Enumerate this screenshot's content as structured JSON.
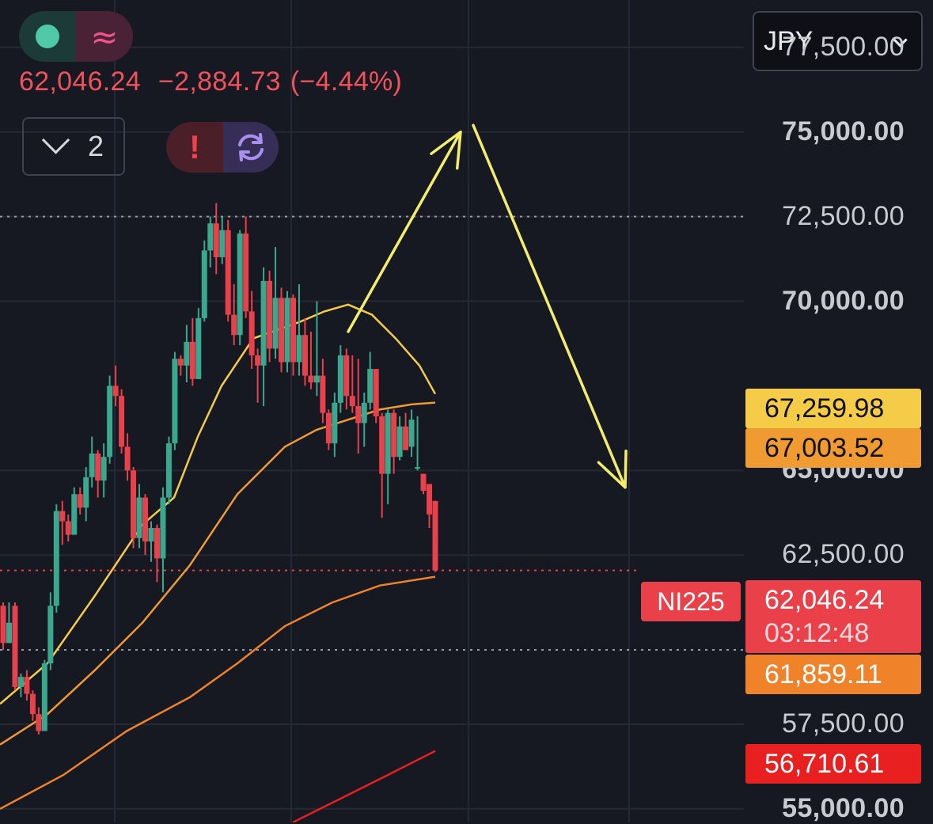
{
  "header": {
    "last_price": "62,046.24",
    "change": "−2,884.73",
    "change_pct": "(−4.44%)",
    "collapse_count": "2",
    "status_alert": "!",
    "icons": [
      "green-dot-icon",
      "wave-icon",
      "chevron-down-icon",
      "alert-icon",
      "refresh-icon"
    ]
  },
  "currency": {
    "selected": "JPY"
  },
  "symbol": "NI225",
  "tags": {
    "ma1": "67,259.98",
    "ma2": "67,003.52",
    "last": "62,046.24",
    "countdown": "03:12:48",
    "ma3": "61,859.11",
    "ma4": "56,710.61"
  },
  "colors": {
    "background": "#161822",
    "up": "#3aa88f",
    "down": "#e9414c",
    "ma1": "#f5cc47",
    "ma2": "#f09a32",
    "ma3": "#f0822a",
    "ma4": "#e8201f",
    "annotation": "#f2ee6a"
  },
  "chart_data": {
    "type": "candlestick",
    "y_axis": {
      "ticks": [
        {
          "value": 77500,
          "label": "77,500.00",
          "bold": false
        },
        {
          "value": 75000,
          "label": "75,000.00",
          "bold": true
        },
        {
          "value": 72500,
          "label": "72,500.00",
          "bold": false
        },
        {
          "value": 70000,
          "label": "70,000.00",
          "bold": true
        },
        {
          "value": 65000,
          "label": "65,000.00",
          "bold": true
        },
        {
          "value": 62500,
          "label": "62,500.00",
          "bold": false
        },
        {
          "value": 57500,
          "label": "57,500.00",
          "bold": false
        },
        {
          "value": 55000,
          "label": "55,000.00",
          "bold": true
        }
      ],
      "range": [
        54600,
        78900
      ]
    },
    "reference_lines": [
      72500,
      62046.24,
      59700
    ],
    "candles": [
      [
        61000,
        61100,
        59700,
        59900
      ],
      [
        59900,
        61100,
        59900,
        60500
      ],
      [
        61000,
        61100,
        58500,
        58600
      ],
      [
        58600,
        59000,
        58300,
        58900
      ],
      [
        58900,
        59100,
        58200,
        58400
      ],
      [
        58400,
        58500,
        57600,
        57800
      ],
      [
        57800,
        58000,
        57200,
        57300
      ],
      [
        57300,
        59400,
        57300,
        59300
      ],
      [
        59300,
        61400,
        59100,
        61000
      ],
      [
        61000,
        64000,
        60800,
        63800
      ],
      [
        63800,
        64100,
        62800,
        63500
      ],
      [
        63500,
        63700,
        62900,
        63100
      ],
      [
        63100,
        64500,
        63100,
        64300
      ],
      [
        64300,
        64500,
        63700,
        63900
      ],
      [
        63900,
        65100,
        63500,
        64800
      ],
      [
        64800,
        66000,
        64500,
        65500
      ],
      [
        65500,
        65600,
        64200,
        64700
      ],
      [
        64700,
        65800,
        64200,
        65400
      ],
      [
        65400,
        67800,
        65200,
        67500
      ],
      [
        67500,
        68100,
        66900,
        67200
      ],
      [
        67200,
        67400,
        65500,
        65700
      ],
      [
        65700,
        66100,
        64700,
        65000
      ],
      [
        65000,
        65100,
        62700,
        63000
      ],
      [
        63000,
        64600,
        62700,
        64200
      ],
      [
        64200,
        64300,
        62500,
        62900
      ],
      [
        62900,
        63500,
        62300,
        63300
      ],
      [
        63300,
        63400,
        61700,
        62400
      ],
      [
        62400,
        64500,
        61400,
        64200
      ],
      [
        64200,
        66000,
        64000,
        65800
      ],
      [
        65800,
        68500,
        65600,
        68300
      ],
      [
        68300,
        68400,
        67800,
        68100
      ],
      [
        68100,
        69300,
        67600,
        68800
      ],
      [
        68800,
        69500,
        67500,
        67700
      ],
      [
        67700,
        69800,
        67700,
        69500
      ],
      [
        69500,
        71800,
        69400,
        71500
      ],
      [
        71500,
        72500,
        71000,
        72300
      ],
      [
        72300,
        72900,
        70800,
        71300
      ],
      [
        71300,
        72500,
        71100,
        72100
      ],
      [
        72100,
        72400,
        69400,
        69600
      ],
      [
        69600,
        70500,
        68700,
        69000
      ],
      [
        69000,
        72100,
        68700,
        72000
      ],
      [
        72000,
        72500,
        69500,
        69700
      ],
      [
        69700,
        70300,
        68000,
        68400
      ],
      [
        68400,
        68600,
        67000,
        68100
      ],
      [
        68100,
        71000,
        66900,
        70600
      ],
      [
        70600,
        70900,
        68200,
        68600
      ],
      [
        68600,
        71600,
        68300,
        70100
      ],
      [
        70100,
        70400,
        67900,
        68200
      ],
      [
        68200,
        70300,
        67900,
        70100
      ],
      [
        70100,
        70200,
        67800,
        68200
      ],
      [
        68200,
        70500,
        67800,
        69000
      ],
      [
        69000,
        69500,
        67500,
        67800
      ],
      [
        67800,
        69100,
        67400,
        67600
      ],
      [
        67600,
        70000,
        67200,
        67800
      ],
      [
        67800,
        68300,
        66400,
        66700
      ],
      [
        66700,
        66800,
        65600,
        65800
      ],
      [
        65800,
        67300,
        65400,
        67000
      ],
      [
        67000,
        68700,
        66700,
        68400
      ],
      [
        68400,
        68600,
        66800,
        67200
      ],
      [
        67200,
        68400,
        66700,
        66900
      ],
      [
        66900,
        68300,
        65500,
        66400
      ],
      [
        66400,
        67300,
        65700,
        67000
      ],
      [
        67000,
        68500,
        66800,
        68000
      ],
      [
        68000,
        68000,
        66400,
        66600
      ],
      [
        66600,
        66700,
        63600,
        64900
      ],
      [
        64900,
        66800,
        64000,
        66700
      ],
      [
        66700,
        66800,
        64900,
        65400
      ],
      [
        65400,
        66600,
        65300,
        66300
      ],
      [
        66300,
        66700,
        65600,
        65600
      ],
      [
        65700,
        66800,
        65400,
        66500
      ],
      [
        65100,
        66600,
        65000,
        65100
      ],
      [
        64900,
        64900,
        64300,
        64400
      ],
      [
        64600,
        64600,
        63300,
        63700
      ],
      [
        64100,
        64100,
        62000,
        62046
      ]
    ],
    "moving_averages": [
      {
        "values": [
          [
            0,
            58100
          ],
          [
            60,
            59300
          ],
          [
            120,
            61300
          ],
          [
            180,
            63400
          ],
          [
            220,
            64200
          ],
          [
            250,
            66000
          ],
          [
            280,
            67500
          ],
          [
            320,
            68900
          ],
          [
            380,
            69400
          ],
          [
            410,
            69700
          ],
          [
            440,
            69900
          ],
          [
            470,
            69600
          ],
          [
            500,
            68900
          ],
          [
            530,
            68100
          ],
          [
            550,
            67260
          ]
        ]
      },
      {
        "values": [
          [
            0,
            56900
          ],
          [
            60,
            57800
          ],
          [
            120,
            59100
          ],
          [
            180,
            60500
          ],
          [
            240,
            62200
          ],
          [
            300,
            64300
          ],
          [
            360,
            65700
          ],
          [
            400,
            66200
          ],
          [
            440,
            66500
          ],
          [
            480,
            66800
          ],
          [
            520,
            66950
          ],
          [
            550,
            67004
          ]
        ]
      },
      {
        "values": [
          [
            0,
            55000
          ],
          [
            80,
            56000
          ],
          [
            160,
            57300
          ],
          [
            240,
            58300
          ],
          [
            300,
            59300
          ],
          [
            360,
            60400
          ],
          [
            420,
            61100
          ],
          [
            480,
            61600
          ],
          [
            550,
            61859
          ]
        ]
      },
      {
        "values": [
          [
            370,
            54600
          ],
          [
            430,
            55300
          ],
          [
            490,
            56000
          ],
          [
            550,
            56711
          ]
        ]
      }
    ],
    "annotations": [
      {
        "type": "arrow",
        "from": [
          440,
          69100
        ],
        "to": [
          582,
          75000
        ]
      },
      {
        "type": "arrow",
        "from": [
          598,
          75200
        ],
        "to": [
          790,
          64500
        ]
      }
    ]
  }
}
